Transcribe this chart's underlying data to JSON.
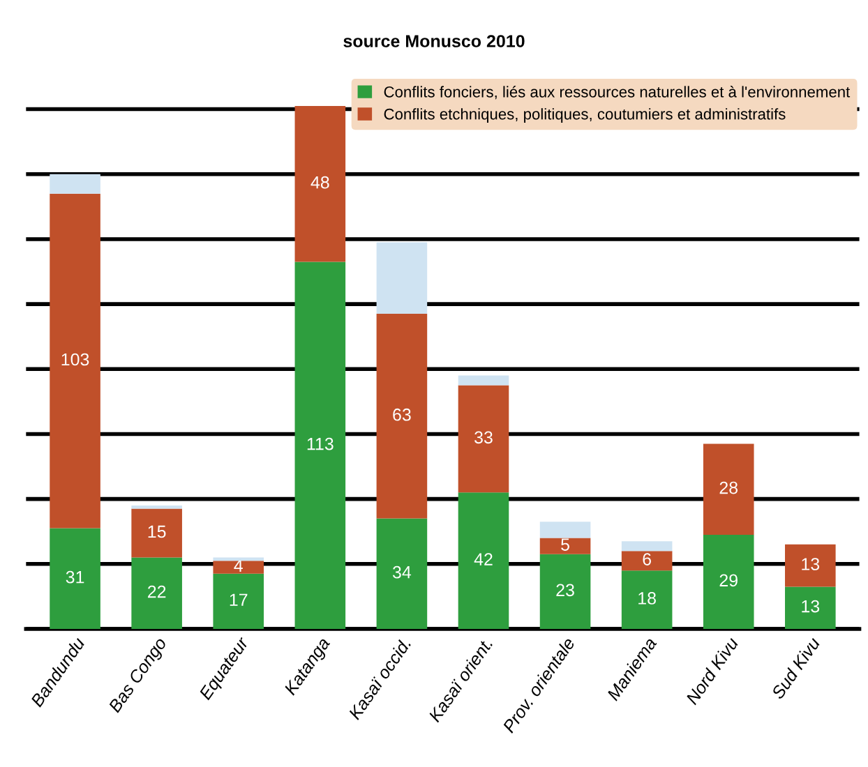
{
  "chart_data": {
    "type": "bar",
    "title": "source Monusco 2010",
    "stacked": true,
    "categories": [
      "Bandundu",
      "Bas Congo",
      "Equateur",
      "Katanga",
      "Kasaï occid.",
      "Kasaï orient.",
      "Prov. orientale",
      "Maniema",
      "Nord Kivu",
      "Sud Kivu"
    ],
    "series": [
      {
        "name": "Conflits fonciers, liés aux ressources naturelles et à l'environnement",
        "color": "#2e9e3e",
        "values": [
          31,
          22,
          17,
          113,
          34,
          42,
          23,
          18,
          29,
          13
        ],
        "value_labels": [
          "31",
          "22",
          "17",
          "113",
          "34",
          "42",
          "23",
          "18",
          "29",
          "13"
        ]
      },
      {
        "name": "Conflits etchniques, politiques, coutumiers et administratifs",
        "color": "#c0502a",
        "values": [
          103,
          15,
          4,
          48,
          63,
          33,
          5,
          6,
          28,
          13
        ],
        "value_labels": [
          "103",
          "15",
          "4",
          "48",
          "63",
          "33",
          "5",
          "6",
          "28",
          "13"
        ]
      },
      {
        "color": "#cfe3f2",
        "values": [
          6,
          1,
          1,
          null,
          22,
          3,
          5,
          3,
          null,
          null
        ]
      }
    ],
    "ylim": [
      0,
      170
    ],
    "yticks": [
      {
        "value": 0,
        "label": null
      },
      {
        "value": 20,
        "label": null
      },
      {
        "value": 40,
        "label": null
      },
      {
        "value": 60,
        "label": null
      },
      {
        "value": 80,
        "label": null
      },
      {
        "value": 100,
        "label": null
      },
      {
        "value": 120,
        "label": null
      },
      {
        "value": 140,
        "label": null
      },
      {
        "value": 160,
        "label": null
      }
    ],
    "grid": "y",
    "tick_labels": "x",
    "legend": "top right"
  }
}
